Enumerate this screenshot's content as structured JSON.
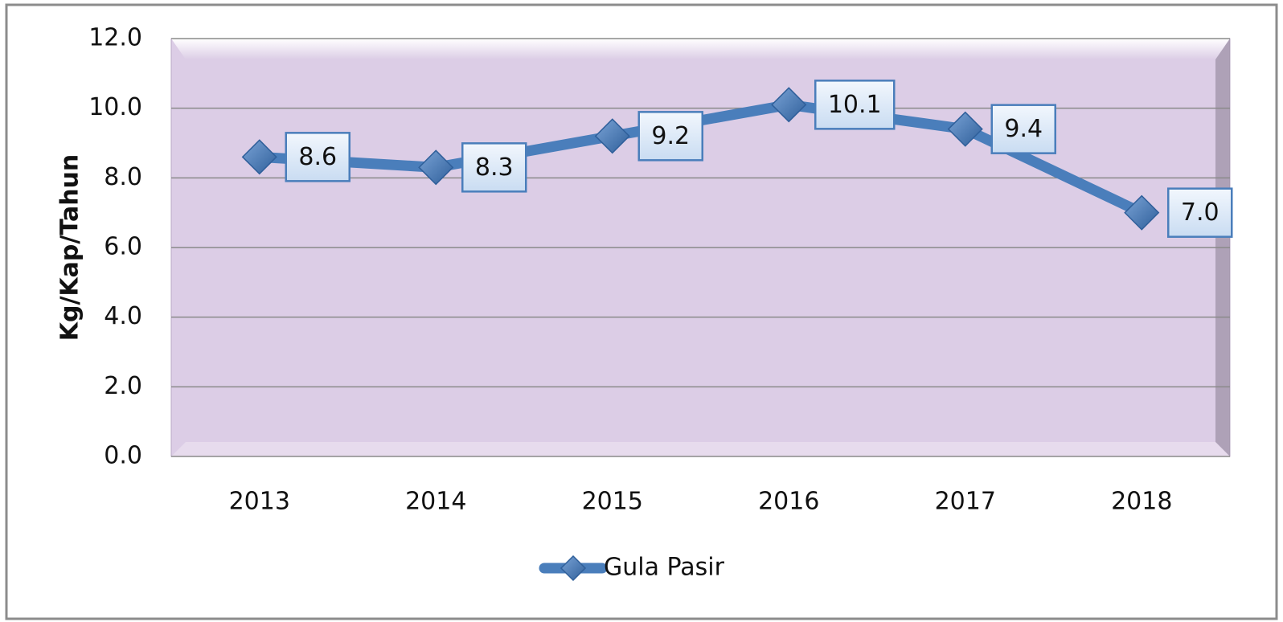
{
  "chart_data": {
    "type": "line",
    "categories": [
      "2013",
      "2014",
      "2015",
      "2016",
      "2017",
      "2018"
    ],
    "series": [
      {
        "name": "Gula Pasir",
        "color": "#4a7ebb",
        "values": [
          8.6,
          8.3,
          9.2,
          10.1,
          9.4,
          7.0
        ],
        "value_labels": [
          "8.6",
          "8.3",
          "9.2",
          "10.1",
          "9.4",
          "7.0"
        ]
      }
    ],
    "y_label": "Kg/Kap/Tahun",
    "ylim": [
      0,
      12
    ],
    "yticks": [
      {
        "value": 0,
        "label": "0.0"
      },
      {
        "value": 2,
        "label": "2.0"
      },
      {
        "value": 4,
        "label": "4.0"
      },
      {
        "value": 6,
        "label": "6.0"
      },
      {
        "value": 8,
        "label": "8.0"
      },
      {
        "value": 10,
        "label": "10.0"
      },
      {
        "value": 12,
        "label": "12.0"
      }
    ],
    "grid": true,
    "legend": "bottom"
  }
}
